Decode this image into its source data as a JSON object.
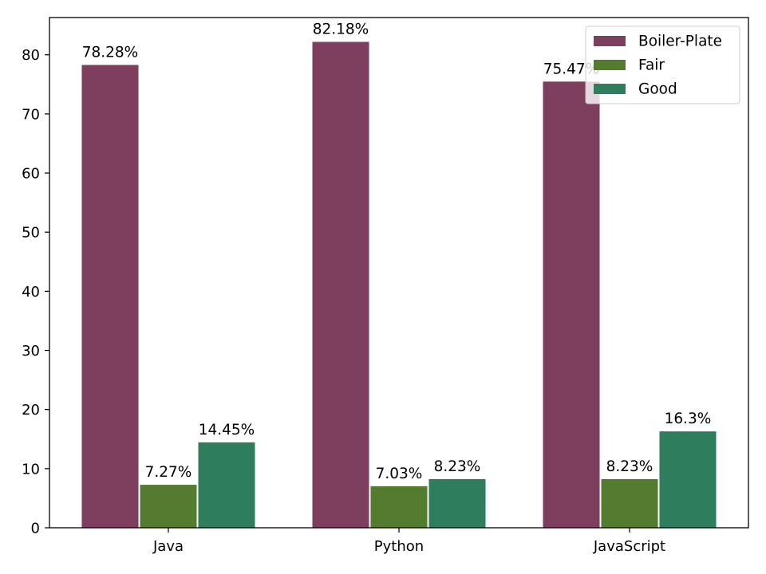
{
  "chart_data": {
    "type": "bar",
    "title": "",
    "xlabel": "",
    "ylabel": "",
    "categories": [
      "Java",
      "Python",
      "JavaScript"
    ],
    "ylim": [
      0,
      86.3
    ],
    "yticks": [
      0,
      10,
      20,
      30,
      40,
      50,
      60,
      70,
      80
    ],
    "legend_position": "top-right",
    "series": [
      {
        "name": "Boiler-Plate",
        "color": "#7e3e5e",
        "values": [
          78.28,
          82.18,
          75.47
        ],
        "labels": [
          "78.28%",
          "82.18%",
          "75.47%"
        ]
      },
      {
        "name": "Fair",
        "color": "#537c2e",
        "values": [
          7.27,
          7.03,
          8.23
        ],
        "labels": [
          "7.27%",
          "7.03%",
          "8.23%"
        ]
      },
      {
        "name": "Good",
        "color": "#2e7e5e",
        "values": [
          14.45,
          8.23,
          16.3
        ],
        "labels": [
          "14.45%",
          "8.23%",
          "16.3%"
        ]
      }
    ]
  }
}
